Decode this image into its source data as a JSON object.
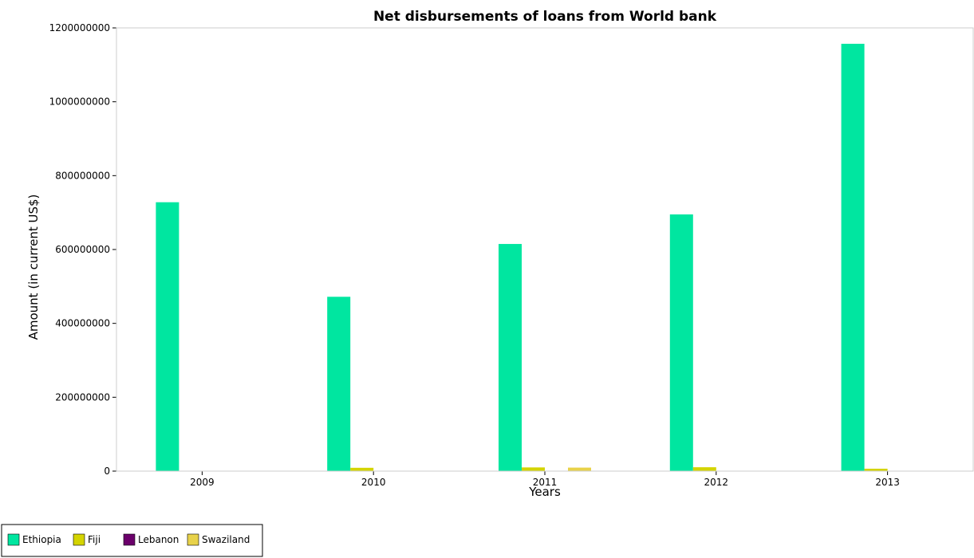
{
  "chart_data": {
    "type": "bar",
    "title": "Net disbursements of loans from World bank",
    "xlabel": "Years",
    "ylabel": "Amount (in current US$)",
    "categories": [
      "2009",
      "2010",
      "2011",
      "2012",
      "2013"
    ],
    "series": [
      {
        "name": "Ethiopia",
        "color": "#00e6a0",
        "values": [
          728000000,
          472000000,
          615000000,
          695000000,
          1157000000
        ]
      },
      {
        "name": "Fiji",
        "color": "#d4d400",
        "values": [
          0,
          9000000,
          10000000,
          10500000,
          6500000
        ]
      },
      {
        "name": "Lebanon",
        "color": "#6b006b",
        "values": [
          0,
          0,
          0,
          0,
          0
        ]
      },
      {
        "name": "Swaziland",
        "color": "#e8d24a",
        "values": [
          0,
          0,
          9500000,
          0,
          0
        ]
      }
    ],
    "ylim": [
      0,
      1200000000
    ],
    "yticks": [
      0,
      200000000,
      400000000,
      600000000,
      800000000,
      1000000000,
      1200000000
    ],
    "ytick_labels": [
      "0",
      "200000000",
      "400000000",
      "600000000",
      "800000000",
      "1000000000",
      "1200000000"
    ],
    "grid": false,
    "legend_position": "bottom-left"
  }
}
